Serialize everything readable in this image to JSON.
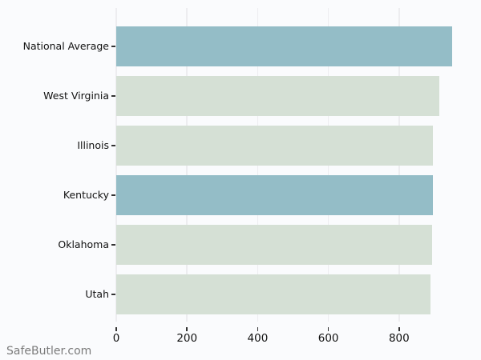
{
  "watermark": {
    "label": "SafeButler.com",
    "color": "#7b7b7b"
  },
  "colors": {
    "background": "#fafbfd",
    "bar_highlight": "#94bdc7",
    "bar_normal": "#d5e0d5",
    "gridline": "#ededf0",
    "tick_mark": "#333333",
    "text": "#111111"
  },
  "chart_data": {
    "type": "bar",
    "orientation": "horizontal",
    "title": "",
    "xlabel": "",
    "ylabel": "",
    "categories": [
      "National Average",
      "West Virginia",
      "Illinois",
      "Kentucky",
      "Oklahoma",
      "Utah"
    ],
    "values": [
      950,
      913,
      896,
      895,
      893,
      889
    ],
    "bar_colors": [
      "#94bdc7",
      "#d5e0d5",
      "#d5e0d5",
      "#94bdc7",
      "#d5e0d5",
      "#d5e0d5"
    ],
    "xlim": [
      0,
      993
    ],
    "xticks": [
      0,
      200,
      400,
      600,
      800
    ],
    "grid": true,
    "legend": false
  }
}
